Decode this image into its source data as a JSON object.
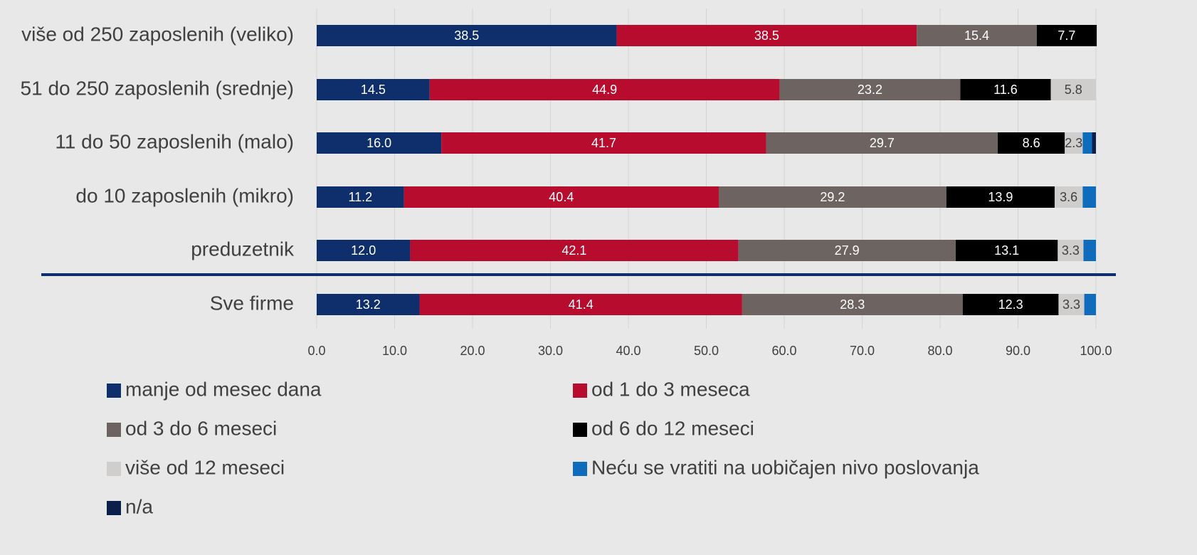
{
  "chart_data": {
    "type": "stacked_bar_horizontal",
    "categories": [
      "više od 250 zaposlenih (veliko)",
      "51 do 250 zaposlenih (srednje)",
      "11 do 50 zaposlenih (malo)",
      "do 10 zaposlenih (mikro)",
      "preduzetnik",
      "Sve firme"
    ],
    "series": [
      {
        "name": "manje od mesec dana",
        "color": "#0e2f6b",
        "values": [
          38.5,
          14.5,
          16.0,
          11.2,
          12.0,
          13.2
        ],
        "value_labels": [
          "38.5",
          "14.5",
          "16.0",
          "11.2",
          "12.0",
          "13.2"
        ]
      },
      {
        "name": "od 1 do 3 meseca",
        "color": "#b80c2f",
        "values": [
          38.5,
          44.9,
          41.7,
          40.4,
          42.1,
          41.4
        ],
        "value_labels": [
          "38.5",
          "44.9",
          "41.7",
          "40.4",
          "42.1",
          "41.4"
        ]
      },
      {
        "name": "od 3 do 6 meseci",
        "color": "#6d6462",
        "values": [
          15.4,
          23.2,
          29.7,
          29.2,
          27.9,
          28.3
        ],
        "value_labels": [
          "15.4",
          "23.2",
          "29.7",
          "29.2",
          "27.9",
          "28.3"
        ]
      },
      {
        "name": "od 6 do 12 meseci",
        "color": "#000000",
        "values": [
          7.7,
          11.6,
          8.6,
          13.9,
          13.1,
          12.3
        ],
        "value_labels": [
          "7.7",
          "11.6",
          "8.6",
          "13.9",
          "13.1",
          "12.3"
        ]
      },
      {
        "name": "više od 12 meseci",
        "color": "#d0cecd",
        "values": [
          null,
          5.8,
          2.3,
          3.6,
          3.3,
          3.3
        ],
        "value_labels": [
          null,
          "5.8",
          "2.3",
          "3.6",
          "3.3",
          "3.3"
        ]
      },
      {
        "name": "Neću se vratiti na uobičajen nivo poslovanja",
        "color": "#0f6cbd",
        "values": [
          null,
          null,
          1.2,
          1.7,
          1.6,
          1.5
        ],
        "value_labels": [
          null,
          null,
          null,
          null,
          null,
          null
        ]
      },
      {
        "name": "n/a",
        "color": "#0b1f4a",
        "values": [
          null,
          null,
          0.5,
          null,
          null,
          null
        ],
        "value_labels": [
          null,
          null,
          null,
          null,
          null,
          null
        ]
      }
    ],
    "xlim": [
      0,
      100
    ],
    "xticks": [
      {
        "value": 0,
        "label": "0.0"
      },
      {
        "value": 10,
        "label": "10.0"
      },
      {
        "value": 20,
        "label": "20.0"
      },
      {
        "value": 30,
        "label": "30.0"
      },
      {
        "value": 40,
        "label": "40.0"
      },
      {
        "value": 50,
        "label": "50.0"
      },
      {
        "value": 60,
        "label": "60.0"
      },
      {
        "value": 70,
        "label": "70.0"
      },
      {
        "value": 80,
        "label": "80.0"
      },
      {
        "value": 90,
        "label": "90.0"
      },
      {
        "value": 100,
        "label": "100.0"
      }
    ],
    "grid": true
  }
}
